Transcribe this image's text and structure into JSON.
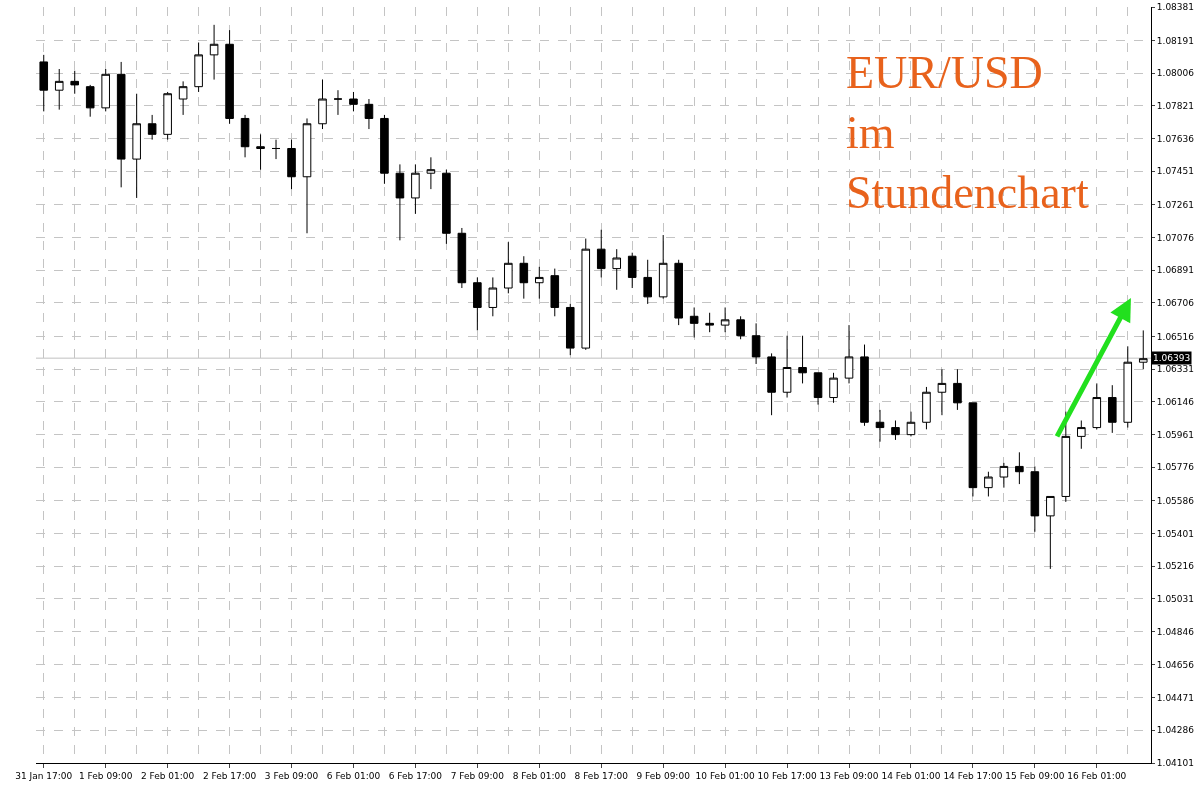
{
  "chart_data": {
    "type": "candlestick",
    "categories": [
      "31 Jan 17:00",
      null,
      null,
      null,
      "1 Feb 09:00",
      null,
      null,
      null,
      "2 Feb 01:00",
      null,
      null,
      null,
      "2 Feb 17:00",
      null,
      null,
      null,
      "3 Feb 09:00",
      null,
      null,
      null,
      "6 Feb 01:00",
      null,
      null,
      null,
      "6 Feb 17:00",
      null,
      null,
      null,
      "7 Feb 09:00",
      null,
      null,
      null,
      "8 Feb 01:00",
      null,
      null,
      null,
      "8 Feb 17:00",
      null,
      null,
      null,
      "9 Feb 09:00",
      null,
      null,
      null,
      "10 Feb 01:00",
      null,
      null,
      null,
      "10 Feb 17:00",
      null,
      null,
      null,
      "13 Feb 09:00",
      null,
      null,
      null,
      "14 Feb 01:00",
      null,
      null,
      null,
      "14 Feb 17:00",
      null,
      null,
      null,
      "15 Feb 09:00",
      null,
      null,
      null,
      "16 Feb 01:00",
      null,
      null,
      null
    ],
    "ohlc": [
      [
        1.0807,
        1.0811,
        1.0779,
        1.0791
      ],
      [
        1.0791,
        1.0803,
        1.078,
        1.0796
      ],
      [
        1.0796,
        1.0802,
        1.0789,
        1.0794
      ],
      [
        1.0793,
        1.0794,
        1.0776,
        1.0781
      ],
      [
        1.0781,
        1.0803,
        1.0779,
        1.08
      ],
      [
        1.08,
        1.0807,
        1.0736,
        1.0752
      ],
      [
        1.0752,
        1.0789,
        1.073,
        1.0772
      ],
      [
        1.0772,
        1.0777,
        1.0763,
        1.0766
      ],
      [
        1.0766,
        1.079,
        1.0763,
        1.0789
      ],
      [
        1.0786,
        1.0796,
        1.0777,
        1.0793
      ],
      [
        1.0793,
        1.0818,
        1.079,
        1.0811
      ],
      [
        1.0811,
        1.0828,
        1.0797,
        1.0817
      ],
      [
        1.0817,
        1.0825,
        1.0772,
        1.0775
      ],
      [
        1.0775,
        1.0777,
        1.0753,
        1.0759
      ],
      [
        1.0759,
        1.0766,
        1.0746,
        1.0758
      ],
      [
        1.0758,
        1.0763,
        1.0752,
        1.0758
      ],
      [
        1.0758,
        1.0763,
        1.0735,
        1.0742
      ],
      [
        1.0742,
        1.0775,
        1.071,
        1.0772
      ],
      [
        1.0772,
        1.0797,
        1.0769,
        1.0786
      ],
      [
        1.0786,
        1.0791,
        1.0777,
        1.0786
      ],
      [
        1.0786,
        1.079,
        1.0779,
        1.0783
      ],
      [
        1.0783,
        1.0786,
        1.0769,
        1.0775
      ],
      [
        1.0775,
        1.0777,
        1.0738,
        1.0744
      ],
      [
        1.0744,
        1.0749,
        1.0706,
        1.073
      ],
      [
        1.073,
        1.0749,
        1.0721,
        1.0744
      ],
      [
        1.0744,
        1.0753,
        1.0735,
        1.0746
      ],
      [
        1.0744,
        1.0746,
        1.0704,
        1.071
      ],
      [
        1.071,
        1.0713,
        1.0679,
        1.0682
      ],
      [
        1.0682,
        1.0685,
        1.0655,
        1.0668
      ],
      [
        1.0668,
        1.0685,
        1.0663,
        1.0679
      ],
      [
        1.0679,
        1.0705,
        1.0676,
        1.0693
      ],
      [
        1.0693,
        1.0697,
        1.0673,
        1.0682
      ],
      [
        1.0682,
        1.0691,
        1.0673,
        1.0685
      ],
      [
        1.0686,
        1.069,
        1.0663,
        1.0668
      ],
      [
        1.0668,
        1.067,
        1.0641,
        1.0645
      ],
      [
        1.0645,
        1.0707,
        1.0644,
        1.0701
      ],
      [
        1.0701,
        1.0712,
        1.0685,
        1.069
      ],
      [
        1.069,
        1.0701,
        1.0678,
        1.0696
      ],
      [
        1.0697,
        1.0699,
        1.0679,
        1.0685
      ],
      [
        1.0685,
        1.0695,
        1.067,
        1.0674
      ],
      [
        1.0674,
        1.0709,
        1.0673,
        1.0693
      ],
      [
        1.0693,
        1.0695,
        1.0658,
        1.0662
      ],
      [
        1.0663,
        1.0668,
        1.0651,
        1.0659
      ],
      [
        1.0659,
        1.0665,
        1.0654,
        1.0658
      ],
      [
        1.0658,
        1.0668,
        1.0654,
        1.0661
      ],
      [
        1.0661,
        1.0663,
        1.065,
        1.0652
      ],
      [
        1.0652,
        1.0659,
        1.0636,
        1.064
      ],
      [
        1.064,
        1.0642,
        1.0607,
        1.062
      ],
      [
        1.062,
        1.0652,
        1.0617,
        1.0634
      ],
      [
        1.0634,
        1.0652,
        1.0625,
        1.0631
      ],
      [
        1.0631,
        1.0631,
        1.0613,
        1.0617
      ],
      [
        1.0617,
        1.0631,
        1.0614,
        1.0628
      ],
      [
        1.0628,
        1.0658,
        1.0625,
        1.064
      ],
      [
        1.064,
        1.0647,
        1.0601,
        1.0603
      ],
      [
        1.0603,
        1.061,
        1.0592,
        1.06
      ],
      [
        1.06,
        1.0604,
        1.0593,
        1.0596
      ],
      [
        1.0596,
        1.0609,
        1.0595,
        1.0603
      ],
      [
        1.0603,
        1.0623,
        1.0599,
        1.062
      ],
      [
        1.062,
        1.0633,
        1.0607,
        1.0625
      ],
      [
        1.0625,
        1.0633,
        1.061,
        1.0614
      ],
      [
        1.0614,
        1.0614,
        1.0561,
        1.0566
      ],
      [
        1.0566,
        1.0575,
        1.0561,
        1.0572
      ],
      [
        1.0572,
        1.058,
        1.0566,
        1.0578
      ],
      [
        1.0578,
        1.0586,
        1.0568,
        1.0575
      ],
      [
        1.0575,
        1.0578,
        1.0541,
        1.055
      ],
      [
        1.055,
        1.0561,
        1.052,
        1.0561
      ],
      [
        1.0561,
        1.0609,
        1.0558,
        1.0595
      ],
      [
        1.0595,
        1.0604,
        1.0588,
        1.06
      ],
      [
        1.06,
        1.0625,
        1.0599,
        1.0617
      ],
      [
        1.0617,
        1.0624,
        1.0597,
        1.0603
      ],
      [
        1.0603,
        1.0646,
        1.06,
        1.0637
      ],
      [
        1.0637,
        1.0655,
        1.0633,
        1.0639
      ]
    ],
    "ylim": [
      1.04101,
      1.08381
    ],
    "yticks": [
      1.04101,
      1.04286,
      1.04471,
      1.04656,
      1.04846,
      1.05031,
      1.05216,
      1.05401,
      1.05586,
      1.05776,
      1.05961,
      1.06146,
      1.06331,
      1.06516,
      1.06706,
      1.06891,
      1.07076,
      1.07261,
      1.07451,
      1.07636,
      1.07821,
      1.08006,
      1.08191,
      1.08381
    ],
    "grid": true,
    "ref_lines": [
      {
        "axis": "y",
        "value": 1.06393,
        "label": "1.06393",
        "color": "#c0c0c0"
      }
    ],
    "annotations": [
      "EUR/USD\nim\nStundenchart"
    ]
  }
}
